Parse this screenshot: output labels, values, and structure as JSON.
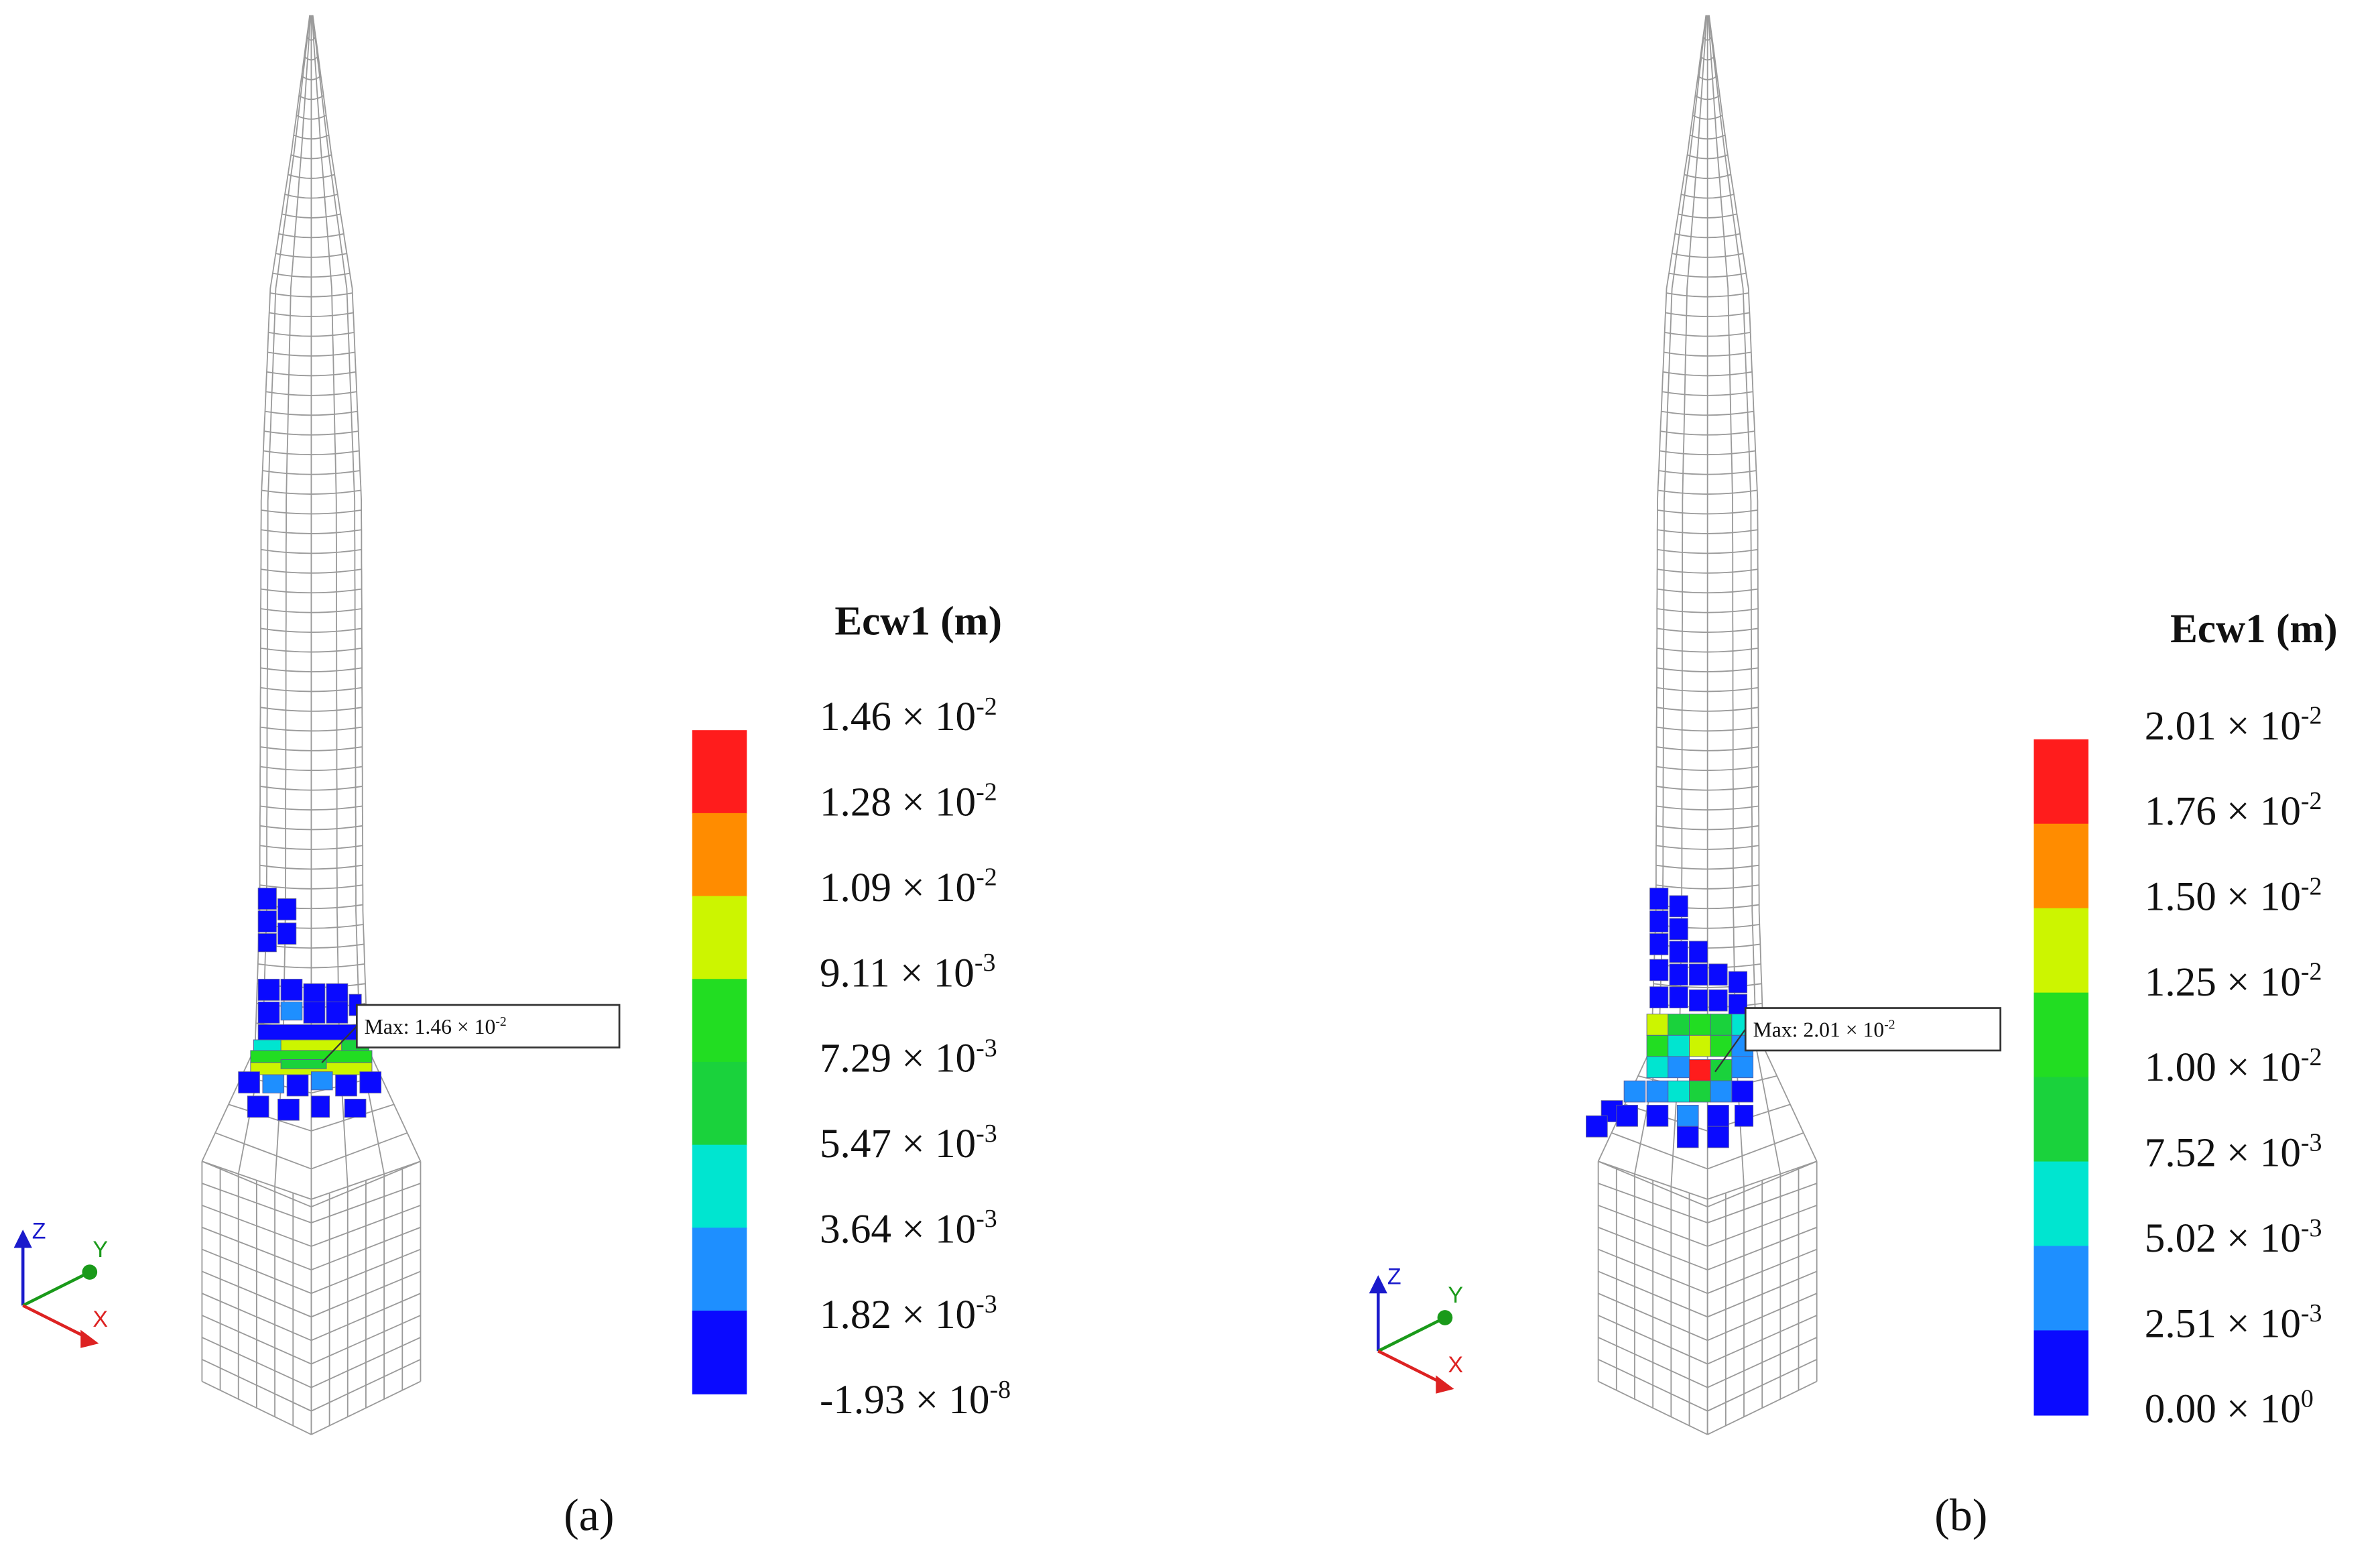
{
  "panels": [
    {
      "caption": "(a)",
      "legend": {
        "title": "Ecw1 (m)",
        "labels": [
          {
            "base": "1.46 × 10",
            "exp": "-2"
          },
          {
            "base": "1.28 × 10",
            "exp": "-2"
          },
          {
            "base": "1.09 × 10",
            "exp": "-2"
          },
          {
            "base": "9.11 × 10",
            "exp": "-3"
          },
          {
            "base": "7.29 × 10",
            "exp": "-3"
          },
          {
            "base": "5.47 × 10",
            "exp": "-3"
          },
          {
            "base": "3.64 × 10",
            "exp": "-3"
          },
          {
            "base": "1.82 × 10",
            "exp": "-3"
          },
          {
            "base": "-1.93 × 10",
            "exp": "-8"
          }
        ],
        "colors": [
          "#ff1c1c",
          "#ff8c00",
          "#ccf500",
          "#22dd22",
          "#1ad23c",
          "#00e5d0",
          "#1e8fff",
          "#0a0aff"
        ]
      },
      "max_label": {
        "base": "Max: 1.46 × 10",
        "exp": "-2"
      },
      "axes": {
        "z": "Z",
        "y": "Y",
        "x": "X"
      }
    },
    {
      "caption": "(b)",
      "legend": {
        "title": "Ecw1 (m)",
        "labels": [
          {
            "base": "2.01 × 10",
            "exp": "-2"
          },
          {
            "base": "1.76 × 10",
            "exp": "-2"
          },
          {
            "base": "1.50 × 10",
            "exp": "-2"
          },
          {
            "base": "1.25 × 10",
            "exp": "-2"
          },
          {
            "base": "1.00 × 10",
            "exp": "-2"
          },
          {
            "base": "7.52 × 10",
            "exp": "-3"
          },
          {
            "base": "5.02 × 10",
            "exp": "-3"
          },
          {
            "base": "2.51 × 10",
            "exp": "-3"
          },
          {
            "base": "0.00 × 10",
            "exp": "0"
          }
        ],
        "colors": [
          "#ff1c1c",
          "#ff8c00",
          "#ccf500",
          "#22dd22",
          "#1ad23c",
          "#00e5d0",
          "#1e8fff",
          "#0a0aff"
        ]
      },
      "max_label": {
        "base": "Max: 2.01 × 10",
        "exp": "-2"
      },
      "axes": {
        "z": "Z",
        "y": "Y",
        "x": "X"
      }
    }
  ]
}
